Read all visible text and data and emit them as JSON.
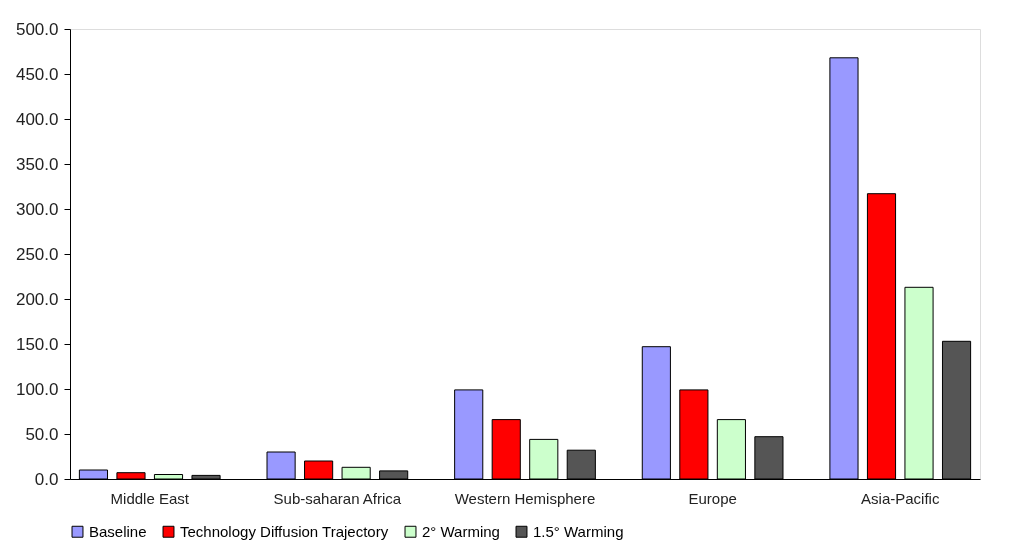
{
  "chart_data": {
    "type": "bar",
    "categories": [
      "Middle East",
      "Sub-saharan Africa",
      "Western Hemisphere",
      "Europe",
      "Asia-Pacific"
    ],
    "series": [
      {
        "name": "Baseline",
        "color": "#9999ff",
        "values": [
          10,
          30,
          99,
          147,
          468
        ]
      },
      {
        "name": "Technology Diffusion Trajectory",
        "color": "#ff0000",
        "values": [
          7,
          20,
          66,
          99,
          317
        ]
      },
      {
        "name": "2° Warming",
        "color": "#ccffcc",
        "values": [
          5,
          13,
          44,
          66,
          213
        ]
      },
      {
        "name": "1.5° Warming",
        "color": "#555555",
        "values": [
          4,
          9,
          32,
          47,
          153
        ]
      }
    ],
    "ylim": [
      0,
      500
    ],
    "yticks": [
      {
        "value": 0,
        "label": "0.0"
      },
      {
        "value": 50,
        "label": "50.0"
      },
      {
        "value": 100,
        "label": "100.0"
      },
      {
        "value": 150,
        "label": "150.0"
      },
      {
        "value": 200,
        "label": "200.0"
      },
      {
        "value": 250,
        "label": "250.0"
      },
      {
        "value": 300,
        "label": "300.0"
      },
      {
        "value": 350,
        "label": "350.0"
      },
      {
        "value": 400,
        "label": "400.0"
      },
      {
        "value": 450,
        "label": "450.0"
      },
      {
        "value": 500,
        "label": "500.0"
      }
    ],
    "grid": false,
    "legend": "bottom"
  }
}
